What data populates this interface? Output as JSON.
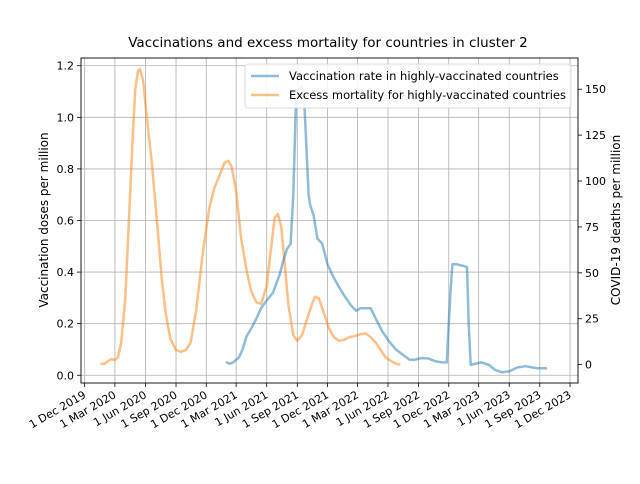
{
  "chart_data": {
    "type": "line",
    "title": "Vaccinations and excess mortality for countries in cluster 2",
    "ylabel_left": "Vaccination doses per million",
    "ylabel_right": "COVID-19 deaths per million",
    "xlabel": "",
    "grid": true,
    "legend_position": "top-right",
    "ylim_left": [
      -0.03,
      1.23
    ],
    "ylim_right": [
      -10,
      167
    ],
    "xlim": [
      "2019-11-20",
      "2023-12-25"
    ],
    "x_ticks": [
      {
        "date": "2019-12-01",
        "label": "1 Dec 2019"
      },
      {
        "date": "2020-03-01",
        "label": "1 Mar 2020"
      },
      {
        "date": "2020-06-01",
        "label": "1 Jun 2020"
      },
      {
        "date": "2020-09-01",
        "label": "1 Sep 2020"
      },
      {
        "date": "2020-12-01",
        "label": "1 Dec 2020"
      },
      {
        "date": "2021-03-01",
        "label": "1 Mar 2021"
      },
      {
        "date": "2021-06-01",
        "label": "1 Jun 2021"
      },
      {
        "date": "2021-09-01",
        "label": "1 Sep 2021"
      },
      {
        "date": "2021-12-01",
        "label": "1 Dec 2021"
      },
      {
        "date": "2022-03-01",
        "label": "1 Mar 2022"
      },
      {
        "date": "2022-06-01",
        "label": "1 Jun 2022"
      },
      {
        "date": "2022-09-01",
        "label": "1 Sep 2022"
      },
      {
        "date": "2022-12-01",
        "label": "1 Dec 2022"
      },
      {
        "date": "2023-03-01",
        "label": "1 Mar 2023"
      },
      {
        "date": "2023-06-01",
        "label": "1 Jun 2023"
      },
      {
        "date": "2023-09-01",
        "label": "1 Sep 2023"
      },
      {
        "date": "2023-12-01",
        "label": "1 Dec 2023"
      }
    ],
    "y_ticks_left": [
      {
        "value": 0.0,
        "label": "0.0"
      },
      {
        "value": 0.2,
        "label": "0.2"
      },
      {
        "value": 0.4,
        "label": "0.4"
      },
      {
        "value": 0.6,
        "label": "0.6"
      },
      {
        "value": 0.8,
        "label": "0.8"
      },
      {
        "value": 1.0,
        "label": "1.0"
      },
      {
        "value": 1.2,
        "label": "1.2"
      }
    ],
    "y_ticks_right": [
      {
        "value": 0,
        "label": "0"
      },
      {
        "value": 25,
        "label": "25"
      },
      {
        "value": 50,
        "label": "50"
      },
      {
        "value": 75,
        "label": "75"
      },
      {
        "value": 100,
        "label": "100"
      },
      {
        "value": 125,
        "label": "125"
      },
      {
        "value": 150,
        "label": "150"
      }
    ],
    "series": [
      {
        "name": "Vaccination rate in highly-vaccinated countries",
        "axis": "left",
        "color": "#1f77b4",
        "points": [
          [
            "2021-02-01",
            0.05
          ],
          [
            "2021-02-10",
            0.045
          ],
          [
            "2021-02-20",
            0.05
          ],
          [
            "2021-03-01",
            0.06
          ],
          [
            "2021-03-10",
            0.07
          ],
          [
            "2021-03-20",
            0.1
          ],
          [
            "2021-04-01",
            0.15
          ],
          [
            "2021-04-15",
            0.18
          ],
          [
            "2021-05-01",
            0.22
          ],
          [
            "2021-05-15",
            0.26
          ],
          [
            "2021-06-01",
            0.29
          ],
          [
            "2021-06-20",
            0.32
          ],
          [
            "2021-07-01",
            0.36
          ],
          [
            "2021-07-10",
            0.39
          ],
          [
            "2021-07-20",
            0.44
          ],
          [
            "2021-08-01",
            0.49
          ],
          [
            "2021-08-12",
            0.51
          ],
          [
            "2021-08-20",
            0.7
          ],
          [
            "2021-08-28",
            1.05
          ],
          [
            "2021-09-05",
            1.11
          ],
          [
            "2021-09-15",
            1.12
          ],
          [
            "2021-09-22",
            1.06
          ],
          [
            "2021-09-28",
            0.9
          ],
          [
            "2021-10-05",
            0.7
          ],
          [
            "2021-10-10",
            0.66
          ],
          [
            "2021-10-20",
            0.62
          ],
          [
            "2021-11-01",
            0.53
          ],
          [
            "2021-11-15",
            0.51
          ],
          [
            "2021-12-01",
            0.43
          ],
          [
            "2021-12-15",
            0.39
          ],
          [
            "2022-01-01",
            0.35
          ],
          [
            "2022-01-20",
            0.31
          ],
          [
            "2022-02-10",
            0.27
          ],
          [
            "2022-02-25",
            0.25
          ],
          [
            "2022-03-10",
            0.26
          ],
          [
            "2022-03-25",
            0.26
          ],
          [
            "2022-04-10",
            0.26
          ],
          [
            "2022-04-25",
            0.22
          ],
          [
            "2022-05-15",
            0.17
          ],
          [
            "2022-06-05",
            0.13
          ],
          [
            "2022-06-25",
            0.1
          ],
          [
            "2022-07-15",
            0.08
          ],
          [
            "2022-08-05",
            0.06
          ],
          [
            "2022-08-20",
            0.06
          ],
          [
            "2022-09-10",
            0.067
          ],
          [
            "2022-09-30",
            0.065
          ],
          [
            "2022-10-20",
            0.055
          ],
          [
            "2022-11-10",
            0.05
          ],
          [
            "2022-11-25",
            0.05
          ],
          [
            "2022-12-05",
            0.3
          ],
          [
            "2022-12-12",
            0.43
          ],
          [
            "2022-12-25",
            0.43
          ],
          [
            "2023-01-10",
            0.425
          ],
          [
            "2023-01-25",
            0.42
          ],
          [
            "2023-01-30",
            0.2
          ],
          [
            "2023-02-05",
            0.04
          ],
          [
            "2023-02-20",
            0.045
          ],
          [
            "2023-03-10",
            0.05
          ],
          [
            "2023-04-01",
            0.04
          ],
          [
            "2023-04-20",
            0.02
          ],
          [
            "2023-05-10",
            0.012
          ],
          [
            "2023-06-01",
            0.015
          ],
          [
            "2023-06-25",
            0.03
          ],
          [
            "2023-07-20",
            0.035
          ],
          [
            "2023-08-10",
            0.03
          ],
          [
            "2023-08-25",
            0.027
          ],
          [
            "2023-09-20",
            0.027
          ]
        ]
      },
      {
        "name": "Excess mortality for highly-vaccinated countries",
        "axis": "right",
        "color": "#ff7f0e",
        "points": [
          [
            "2020-01-20",
            0.5
          ],
          [
            "2020-01-30",
            0.5
          ],
          [
            "2020-02-10",
            2
          ],
          [
            "2020-02-20",
            3
          ],
          [
            "2020-03-01",
            2.5
          ],
          [
            "2020-03-10",
            4
          ],
          [
            "2020-03-20",
            12
          ],
          [
            "2020-04-01",
            35
          ],
          [
            "2020-04-10",
            70
          ],
          [
            "2020-04-20",
            110
          ],
          [
            "2020-05-01",
            150
          ],
          [
            "2020-05-10",
            160
          ],
          [
            "2020-05-15",
            161
          ],
          [
            "2020-05-25",
            155
          ],
          [
            "2020-06-05",
            135
          ],
          [
            "2020-06-20",
            110
          ],
          [
            "2020-07-05",
            80
          ],
          [
            "2020-07-20",
            47
          ],
          [
            "2020-08-01",
            28
          ],
          [
            "2020-08-15",
            14
          ],
          [
            "2020-09-01",
            8
          ],
          [
            "2020-09-15",
            7
          ],
          [
            "2020-10-01",
            8
          ],
          [
            "2020-10-15",
            12
          ],
          [
            "2020-11-01",
            30
          ],
          [
            "2020-11-20",
            60
          ],
          [
            "2020-12-10",
            85
          ],
          [
            "2020-12-25",
            96
          ],
          [
            "2021-01-10",
            103
          ],
          [
            "2021-01-25",
            110
          ],
          [
            "2021-02-05",
            111
          ],
          [
            "2021-02-15",
            108
          ],
          [
            "2021-03-01",
            95
          ],
          [
            "2021-03-15",
            70
          ],
          [
            "2021-04-01",
            52
          ],
          [
            "2021-04-15",
            40
          ],
          [
            "2021-05-01",
            34
          ],
          [
            "2021-05-15",
            33
          ],
          [
            "2021-06-01",
            43
          ],
          [
            "2021-06-15",
            65
          ],
          [
            "2021-06-25",
            80
          ],
          [
            "2021-07-05",
            82
          ],
          [
            "2021-07-15",
            75
          ],
          [
            "2021-07-25",
            55
          ],
          [
            "2021-08-05",
            33
          ],
          [
            "2021-08-20",
            16
          ],
          [
            "2021-09-01",
            13
          ],
          [
            "2021-09-15",
            16
          ],
          [
            "2021-10-01",
            25
          ],
          [
            "2021-10-15",
            33
          ],
          [
            "2021-10-25",
            37
          ],
          [
            "2021-11-05",
            36
          ],
          [
            "2021-11-20",
            28
          ],
          [
            "2021-12-05",
            20
          ],
          [
            "2021-12-20",
            15
          ],
          [
            "2022-01-05",
            13
          ],
          [
            "2022-01-20",
            13.5
          ],
          [
            "2022-02-05",
            15
          ],
          [
            "2022-02-20",
            15.5
          ],
          [
            "2022-03-10",
            16.5
          ],
          [
            "2022-03-25",
            17
          ],
          [
            "2022-04-10",
            15
          ],
          [
            "2022-04-25",
            12
          ],
          [
            "2022-05-10",
            8
          ],
          [
            "2022-05-25",
            4
          ],
          [
            "2022-06-10",
            2
          ],
          [
            "2022-06-25",
            0.5
          ],
          [
            "2022-07-05",
            0
          ]
        ]
      }
    ]
  }
}
